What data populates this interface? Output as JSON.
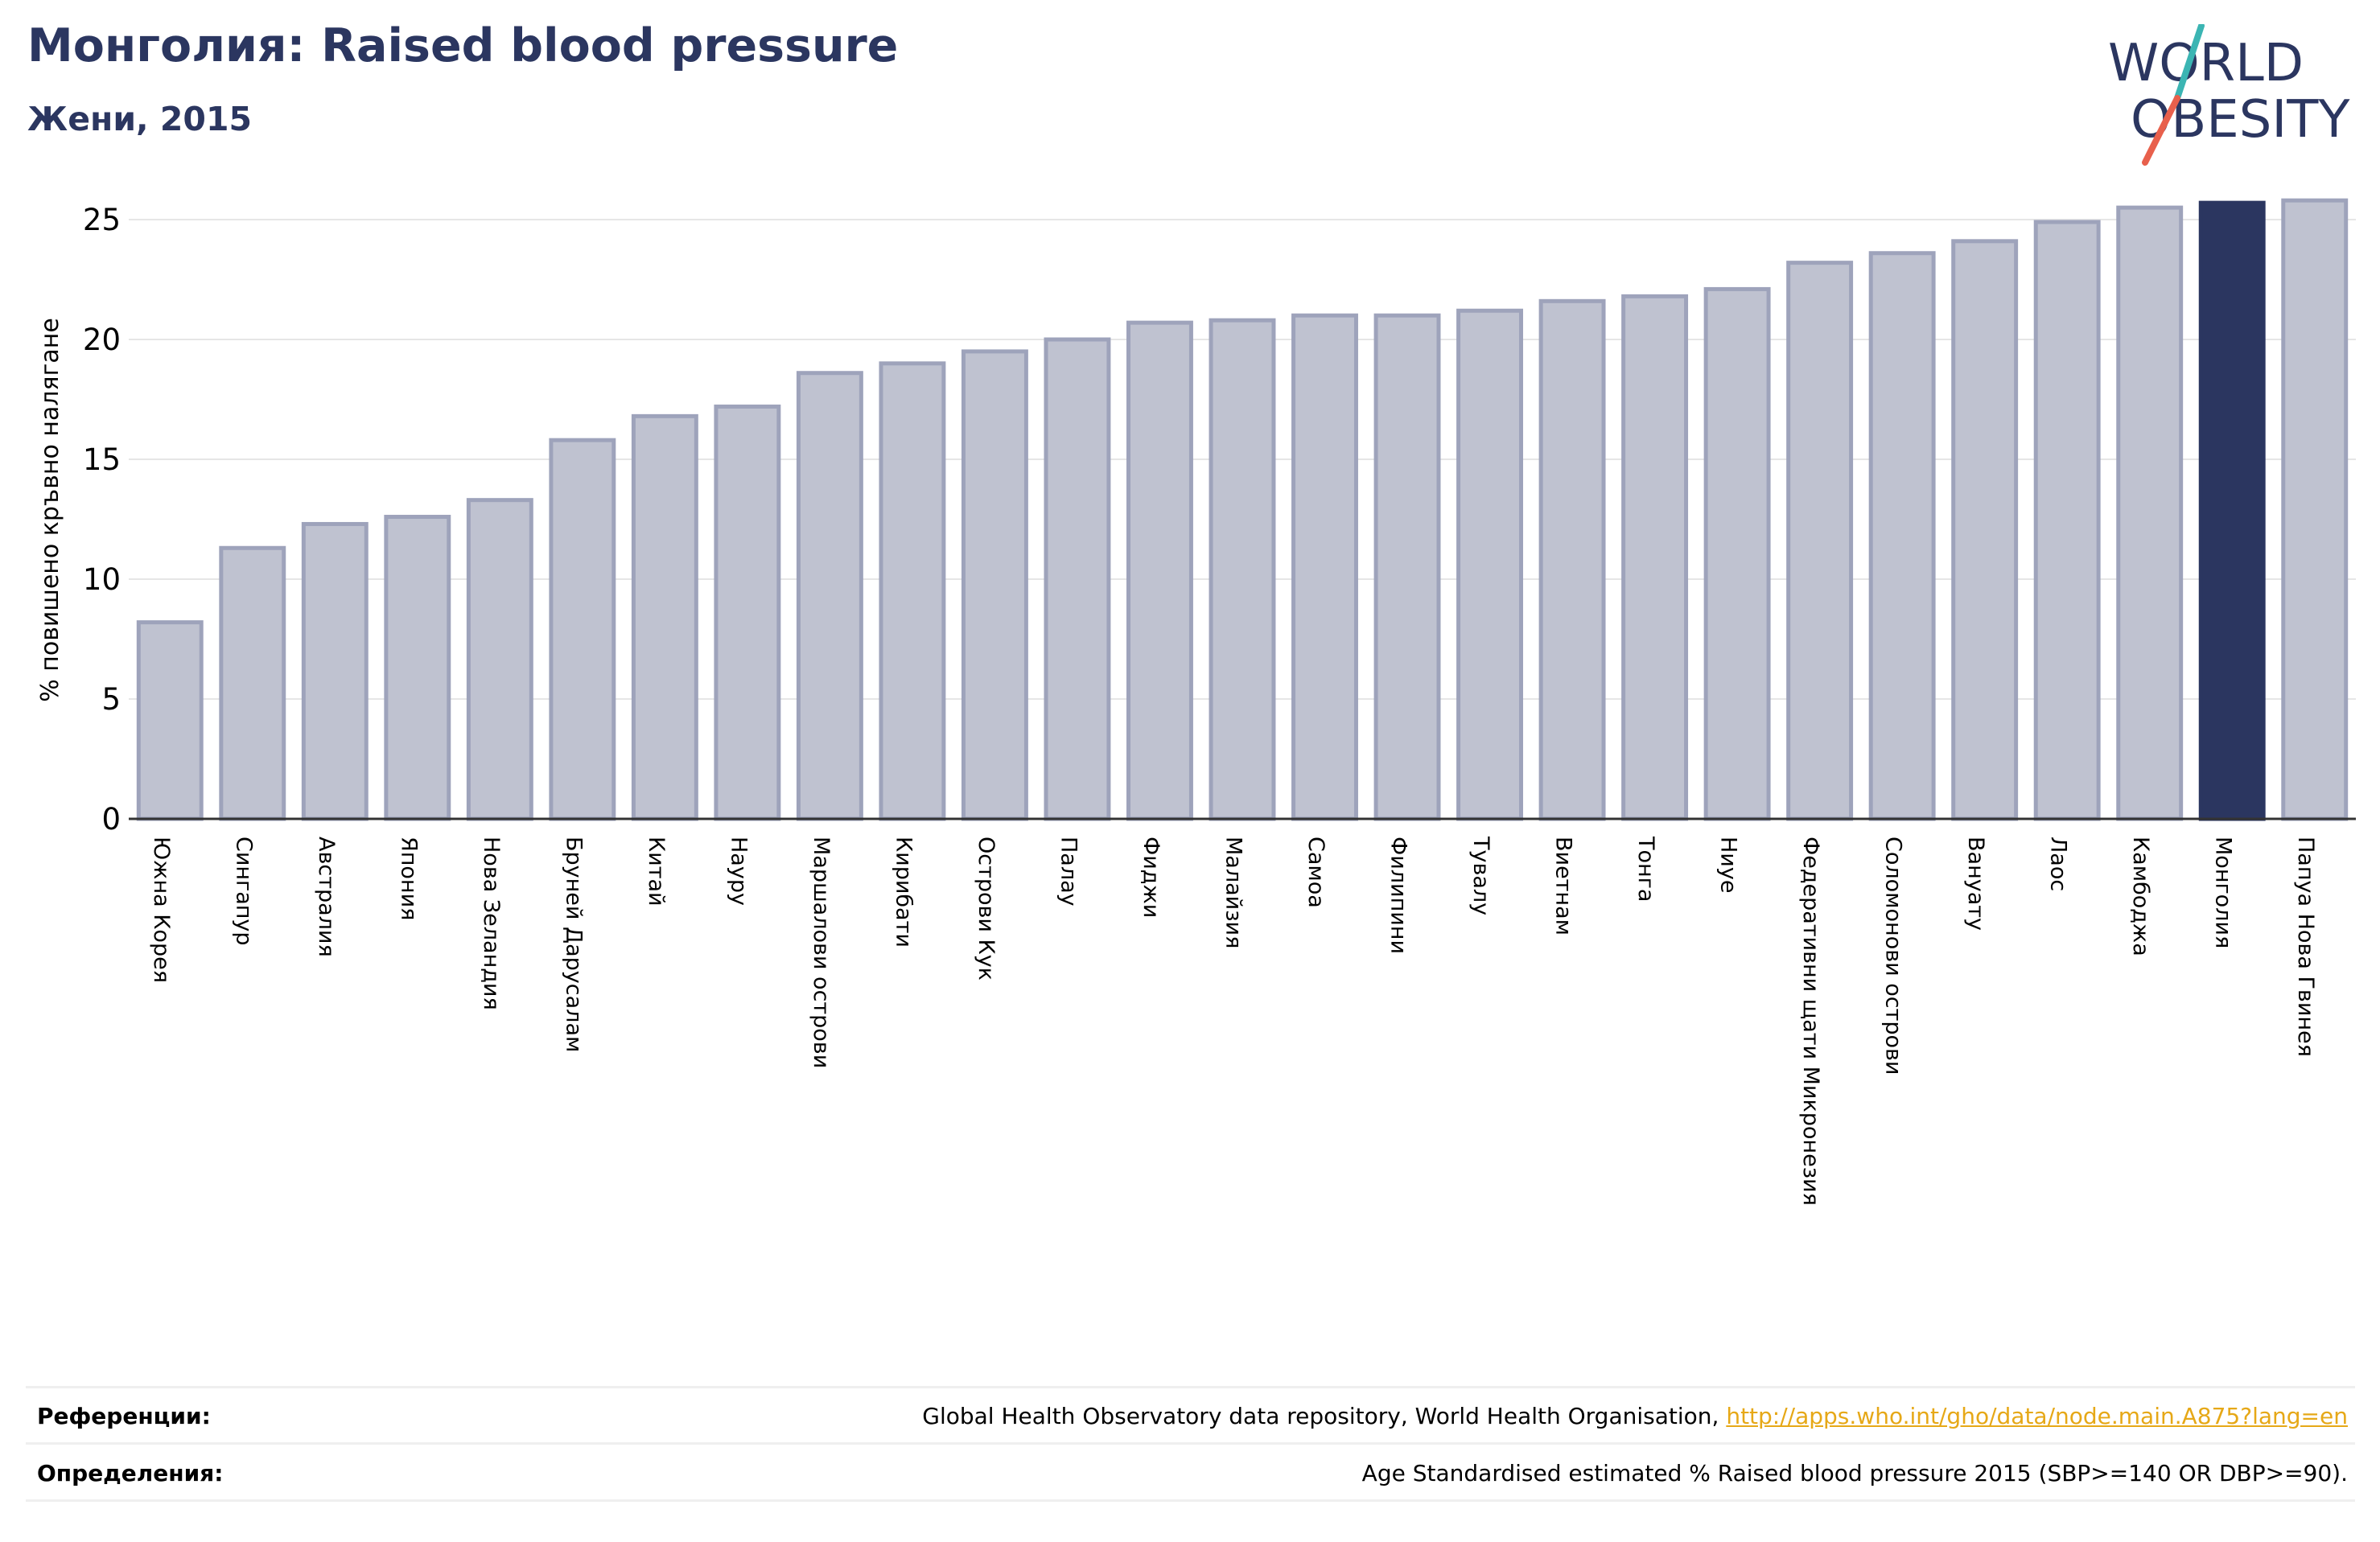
{
  "header": {
    "title": "Монголия: Raised blood pressure",
    "subtitle": "Жени, 2015"
  },
  "logo": {
    "line1": "WORLD",
    "line2": "OBESITY"
  },
  "colors": {
    "title": "#2b3660",
    "bar_default": "#bfc2d0",
    "bar_default_stroke": "#9ea3bb",
    "bar_highlight": "#2b3660",
    "logo_teal": "#3bb5b3",
    "logo_red": "#e8604c",
    "link": "#e6a817"
  },
  "chart_data": {
    "type": "bar",
    "title": "",
    "xlabel": "",
    "ylabel": "% повишено кръвно налягане",
    "ylim": [
      0,
      26
    ],
    "yticks": [
      0,
      5,
      10,
      15,
      20,
      25
    ],
    "grid": true,
    "highlight": "Монголия",
    "categories": [
      "Южна Корея",
      "Сингапур",
      "Австралия",
      "Япония",
      "Нова Зеландия",
      "Бруней Дарусалам",
      "Китай",
      "Науру",
      "Маршалови острови",
      "Кирибати",
      "Острови Кук",
      "Палау",
      "Фиджи",
      "Малайзия",
      "Самоа",
      "Филипини",
      "Тувалу",
      "Виетнам",
      "Тонга",
      "Ниуе",
      "Федеративни щати Микронезия",
      "Соломонови острови",
      "Вануату",
      "Лаос",
      "Камбоджа",
      "Монголия",
      "Папуа Нова Гвинея"
    ],
    "values": [
      8.2,
      11.3,
      12.3,
      12.6,
      13.3,
      15.8,
      16.8,
      17.2,
      18.6,
      19.0,
      19.5,
      20.0,
      20.7,
      20.8,
      21.0,
      21.0,
      21.2,
      21.6,
      21.8,
      22.1,
      23.2,
      23.6,
      24.1,
      24.9,
      25.5,
      25.7,
      25.8
    ]
  },
  "footer": {
    "references_label": "Референции:",
    "references_text": "Global Health Observatory data repository, World Health Organisation, ",
    "references_link": "http://apps.who.int/gho/data/node.main.A875?lang=en",
    "definitions_label": "Определения:",
    "definitions_text": "Age Standardised estimated % Raised blood pressure 2015 (SBP>=140 OR DBP>=90)."
  }
}
